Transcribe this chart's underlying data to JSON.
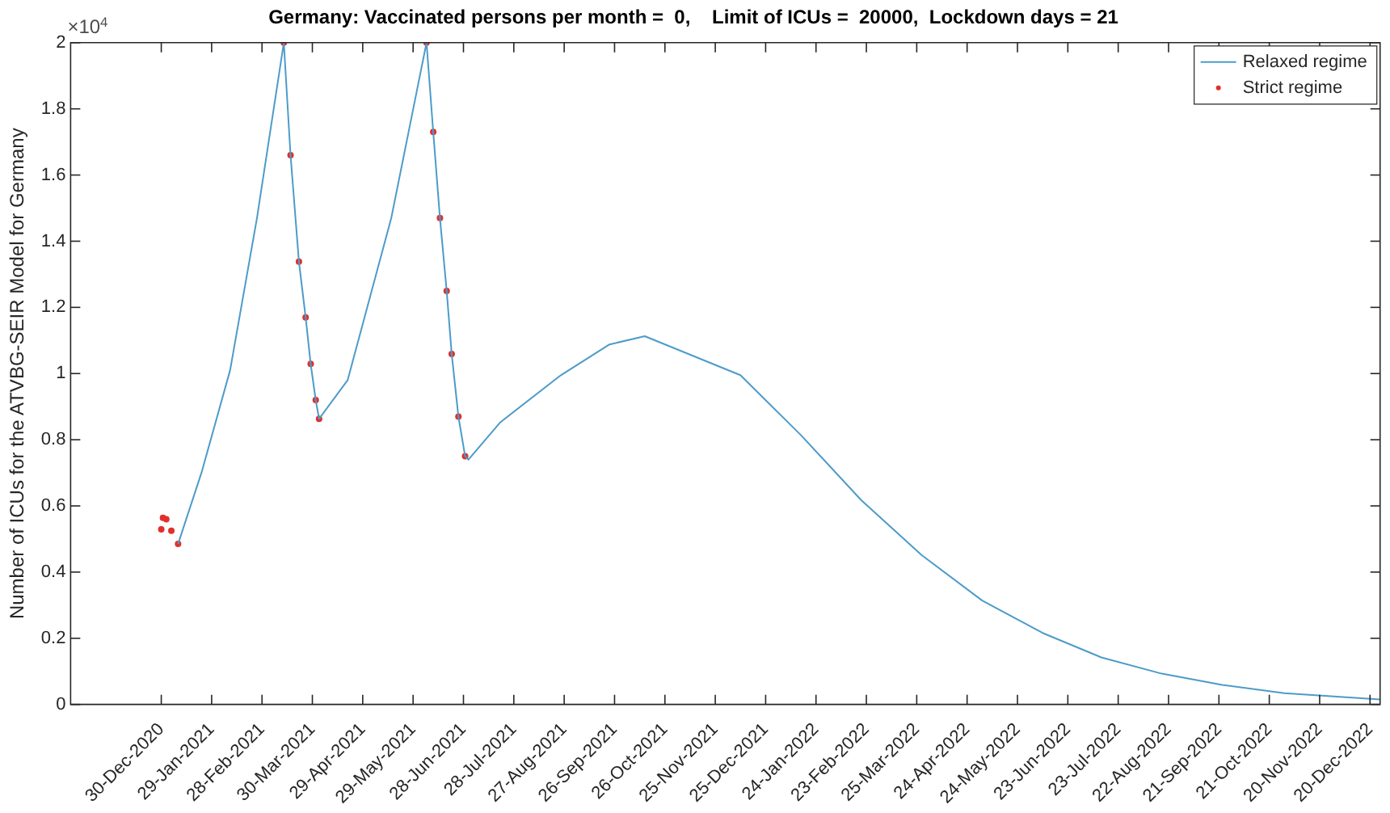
{
  "chart_data": {
    "type": "line",
    "title": "Germany: Vaccinated persons per month =  0,    Limit of ICUs =  20000,  Lockdown days = 21",
    "ylabel": "Number of ICUs for the ATVBG-SEIR Model for Germany",
    "annotations": [
      "×10$^{4}$"
    ],
    "series": [
      {
        "name": "Relaxed regime",
        "type": "line",
        "marker": "none",
        "color": "#4d9bc9",
        "x": [
          "2021-01-09",
          "2021-01-23",
          "2021-02-09",
          "2021-02-25",
          "2021-03-13",
          "2021-03-17",
          "2021-03-22",
          "2021-03-26",
          "2021-03-29",
          "2021-04-01",
          "2021-04-03",
          "2021-04-20",
          "2021-05-16",
          "2021-06-06",
          "2021-06-10",
          "2021-06-14",
          "2021-06-18",
          "2021-06-21",
          "2021-06-25",
          "2021-06-29",
          "2021-07-01",
          "2021-07-20",
          "2021-08-25",
          "2021-09-23",
          "2021-10-14",
          "2021-12-10",
          "2022-01-15",
          "2022-02-20",
          "2022-03-28",
          "2022-05-03",
          "2022-06-08",
          "2022-07-13",
          "2022-08-18",
          "2022-09-23",
          "2022-10-30",
          "2022-12-26"
        ],
        "values": [
          0.485,
          0.701,
          1.01,
          1.47,
          2,
          1.66,
          1.338,
          1.17,
          1.029,
          0.92,
          0.863,
          0.98,
          1.47,
          2,
          1.73,
          1.47,
          1.25,
          1.059,
          0.87,
          0.75,
          0.74,
          0.853,
          0.995,
          1.088,
          1.113,
          0.995,
          0.814,
          0.617,
          0.451,
          0.314,
          0.216,
          0.142,
          0.093,
          0.059,
          0.034,
          0.015
        ]
      },
      {
        "name": "Strict regime",
        "type": "scatter",
        "marker": "circle",
        "color": "#e0302c",
        "x": [
          "2020-12-30",
          "2020-12-31",
          "2021-01-02",
          "2021-01-05",
          "2021-01-09",
          "2021-03-13",
          "2021-03-17",
          "2021-03-22",
          "2021-03-26",
          "2021-03-29",
          "2021-04-01",
          "2021-04-03",
          "2021-06-06",
          "2021-06-10",
          "2021-06-14",
          "2021-06-18",
          "2021-06-21",
          "2021-06-25",
          "2021-06-29"
        ],
        "values": [
          0.529,
          0.564,
          0.56,
          0.525,
          0.485,
          2,
          1.66,
          1.338,
          1.17,
          1.029,
          0.92,
          0.863,
          2,
          1.73,
          1.47,
          1.25,
          1.059,
          0.87,
          0.75
        ]
      }
    ],
    "xlim": [
      "2020-11-06",
      "2022-12-26"
    ],
    "xticks": [
      {
        "value": "2020-12-30",
        "label": "30-Dec-2020"
      },
      {
        "value": "2021-01-29",
        "label": "29-Jan-2021"
      },
      {
        "value": "2021-02-28",
        "label": "28-Feb-2021"
      },
      {
        "value": "2021-03-30",
        "label": "30-Mar-2021"
      },
      {
        "value": "2021-04-29",
        "label": "29-Apr-2021"
      },
      {
        "value": "2021-05-29",
        "label": "29-May-2021"
      },
      {
        "value": "2021-06-28",
        "label": "28-Jun-2021"
      },
      {
        "value": "2021-07-28",
        "label": "28-Jul-2021"
      },
      {
        "value": "2021-08-27",
        "label": "27-Aug-2021"
      },
      {
        "value": "2021-09-26",
        "label": "26-Sep-2021"
      },
      {
        "value": "2021-10-26",
        "label": "26-Oct-2021"
      },
      {
        "value": "2021-11-25",
        "label": "25-Nov-2021"
      },
      {
        "value": "2021-12-25",
        "label": "25-Dec-2021"
      },
      {
        "value": "2022-01-24",
        "label": "24-Jan-2022"
      },
      {
        "value": "2022-02-23",
        "label": "23-Feb-2022"
      },
      {
        "value": "2022-03-25",
        "label": "25-Mar-2022"
      },
      {
        "value": "2022-04-24",
        "label": "24-Apr-2022"
      },
      {
        "value": "2022-05-24",
        "label": "24-May-2022"
      },
      {
        "value": "2022-06-23",
        "label": "23-Jun-2022"
      },
      {
        "value": "2022-07-23",
        "label": "23-Jul-2022"
      },
      {
        "value": "2022-08-22",
        "label": "22-Aug-2022"
      },
      {
        "value": "2022-09-21",
        "label": "21-Sep-2022"
      },
      {
        "value": "2022-10-21",
        "label": "21-Oct-2022"
      },
      {
        "value": "2022-11-20",
        "label": "20-Nov-2022"
      },
      {
        "value": "2022-12-20",
        "label": "20-Dec-2022"
      }
    ],
    "ylim": [
      0,
      2
    ],
    "yticks": [
      0,
      0.2,
      0.4,
      0.6,
      0.8,
      1,
      1.2,
      1.4,
      1.6,
      1.8,
      2
    ],
    "grid": false,
    "legend": "top right"
  }
}
